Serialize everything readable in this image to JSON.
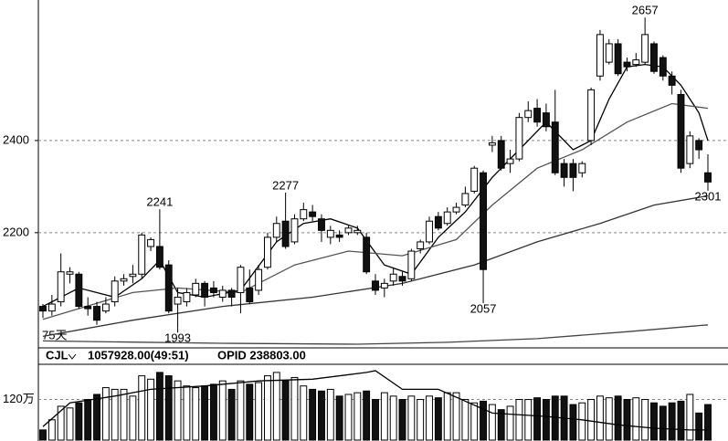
{
  "chart_data": {
    "type": "candlestick",
    "ylim": [
      1950,
      2705
    ],
    "yticks": [
      2200,
      2400
    ],
    "grid": true,
    "ma_label": "75天",
    "open": [
      2040,
      2030,
      2050,
      2110,
      2110,
      2040,
      2040,
      2030,
      2050,
      2095,
      2105,
      2110,
      2170,
      2170,
      2130,
      2045,
      2050,
      2065,
      2090,
      2080,
      2060,
      2075,
      2070,
      2080,
      2075,
      2125,
      2190,
      2225,
      2180,
      2230,
      2245,
      2230,
      2190,
      2195,
      2200,
      2200,
      2190,
      2095,
      2080,
      2095,
      2105,
      2100,
      2165,
      2180,
      2235,
      2220,
      2245,
      2260,
      2290,
      2330,
      2390,
      2400,
      2350,
      2360,
      2450,
      2470,
      2460,
      2440,
      2350,
      2350,
      2330,
      2400,
      2540,
      2570,
      2610,
      2570,
      2565,
      2570,
      2610,
      2580,
      2540,
      2500,
      2350,
      2400,
      2330
    ],
    "high": [
      2045,
      2065,
      2155,
      2125,
      2115,
      2060,
      2050,
      2060,
      2105,
      2110,
      2130,
      2200,
      2190,
      2241,
      2140,
      2080,
      2080,
      2100,
      2095,
      2095,
      2085,
      2080,
      2130,
      2120,
      2130,
      2200,
      2235,
      2277,
      2240,
      2265,
      2260,
      2240,
      2215,
      2205,
      2215,
      2215,
      2200,
      2110,
      2100,
      2125,
      2115,
      2165,
      2185,
      2235,
      2245,
      2255,
      2265,
      2300,
      2345,
      2335,
      2410,
      2410,
      2380,
      2460,
      2485,
      2490,
      2480,
      2510,
      2360,
      2360,
      2355,
      2515,
      2640,
      2620,
      2620,
      2580,
      2590,
      2657,
      2615,
      2585,
      2550,
      2510,
      2420,
      2405,
      2370
    ],
    "low": [
      2015,
      2020,
      2040,
      2090,
      2035,
      2020,
      2000,
      2025,
      2040,
      2085,
      2090,
      2100,
      2160,
      2120,
      2025,
      1993,
      2040,
      2060,
      2040,
      2060,
      2050,
      2040,
      2025,
      2045,
      2065,
      2120,
      2180,
      2165,
      2175,
      2225,
      2225,
      2180,
      2175,
      2180,
      2195,
      2195,
      2110,
      2065,
      2060,
      2085,
      2085,
      2095,
      2155,
      2175,
      2205,
      2215,
      2240,
      2255,
      2285,
      2057,
      2375,
      2335,
      2330,
      2355,
      2440,
      2430,
      2420,
      2325,
      2300,
      2290,
      2320,
      2390,
      2530,
      2565,
      2540,
      2550,
      2560,
      2565,
      2545,
      2530,
      2500,
      2330,
      2340,
      2360,
      2301
    ],
    "close": [
      2030,
      2045,
      2115,
      2115,
      2040,
      2035,
      2010,
      2045,
      2095,
      2100,
      2110,
      2195,
      2185,
      2125,
      2030,
      2060,
      2070,
      2090,
      2060,
      2070,
      2075,
      2060,
      2125,
      2050,
      2120,
      2190,
      2220,
      2170,
      2230,
      2250,
      2235,
      2205,
      2205,
      2190,
      2210,
      2205,
      2115,
      2075,
      2090,
      2110,
      2095,
      2160,
      2180,
      2225,
      2210,
      2245,
      2255,
      2285,
      2340,
      2120,
      2395,
      2340,
      2360,
      2450,
      2465,
      2440,
      2430,
      2330,
      2320,
      2320,
      2350,
      2510,
      2630,
      2610,
      2545,
      2560,
      2575,
      2630,
      2550,
      2540,
      2520,
      2340,
      2410,
      2380,
      2310
    ],
    "marked_extremes": [
      2241,
      1993,
      2277,
      2057,
      2657,
      2301
    ],
    "ma_lines": [
      {
        "color": "#000000",
        "x": [
          0,
          4,
          8,
          11,
          13,
          15,
          18,
          22,
          26,
          29,
          32,
          35,
          38,
          41,
          44,
          47,
          50,
          53,
          56,
          59,
          61,
          63,
          65,
          67,
          69,
          71,
          73,
          74
        ],
        "values": [
          2040,
          2080,
          2060,
          2100,
          2140,
          2070,
          2060,
          2075,
          2180,
          2220,
          2230,
          2210,
          2130,
          2110,
          2190,
          2245,
          2320,
          2380,
          2440,
          2380,
          2400,
          2490,
          2560,
          2565,
          2560,
          2520,
          2460,
          2400
        ]
      },
      {
        "color": "#555555",
        "x": [
          0,
          10,
          15,
          22,
          28,
          34,
          40,
          46,
          50,
          55,
          60,
          65,
          70,
          74
        ],
        "values": [
          2012,
          2070,
          2080,
          2070,
          2130,
          2160,
          2150,
          2185,
          2260,
          2340,
          2380,
          2440,
          2480,
          2470
        ]
      },
      {
        "color": "#333333",
        "x": [
          0,
          10,
          20,
          30,
          40,
          48,
          55,
          62,
          68,
          74
        ],
        "values": [
          1975,
          2010,
          2040,
          2060,
          2090,
          2130,
          2180,
          2220,
          2260,
          2280
        ]
      },
      {
        "color": "#444444",
        "x": [
          0,
          20,
          35,
          45,
          55,
          65,
          74
        ],
        "values": [
          1965,
          1960,
          1958,
          1962,
          1970,
          1985,
          2000
        ]
      }
    ],
    "volume_indicator": "CJL",
    "volume_info": "1057928.00(49:51)",
    "opid_info": "OPID 238803.00",
    "vlim": [
      0,
      224
    ],
    "vticks": [
      {
        "value": 120,
        "label": "120万"
      }
    ],
    "volume": [
      30,
      60,
      100,
      95,
      110,
      120,
      135,
      155,
      150,
      150,
      130,
      190,
      180,
      200,
      190,
      175,
      160,
      155,
      160,
      165,
      175,
      150,
      175,
      165,
      170,
      190,
      200,
      175,
      185,
      160,
      150,
      145,
      150,
      130,
      135,
      140,
      145,
      120,
      140,
      130,
      120,
      130,
      120,
      130,
      125,
      140,
      140,
      120,
      110,
      115,
      105,
      90,
      100,
      120,
      120,
      125,
      120,
      130,
      130,
      105,
      110,
      120,
      130,
      125,
      130,
      120,
      125,
      120,
      110,
      100,
      110,
      115,
      135,
      80,
      105
    ],
    "volume_ma": {
      "color": "#000000",
      "x": [
        0,
        3,
        8,
        12,
        18,
        24,
        30,
        36,
        37,
        40,
        44,
        50,
        56,
        60,
        64,
        68,
        72,
        74
      ],
      "values": [
        40,
        110,
        130,
        150,
        160,
        175,
        180,
        200,
        205,
        150,
        150,
        80,
        70,
        60,
        45,
        35,
        30,
        30
      ]
    }
  }
}
